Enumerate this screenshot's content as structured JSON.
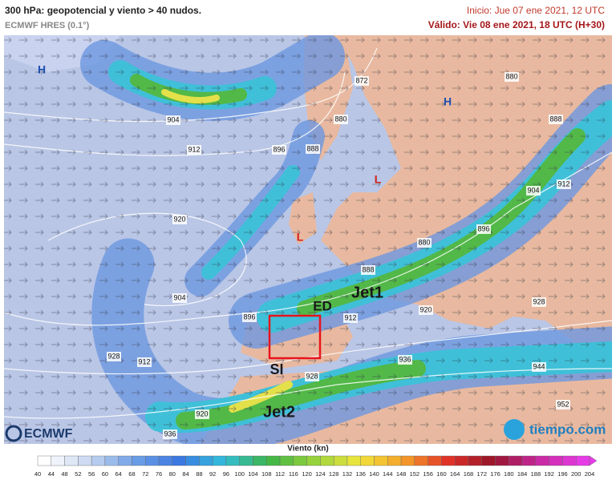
{
  "header": {
    "title": "300 hPa: geopotencial y viento > 40 nudos.",
    "subtitle": "ECMWF HRES (0.1°)",
    "start": "Inicio: Jue 07 ene 2021, 12 UTC",
    "valid": "Válido: Vie 08 ene 2021, 18 UTC (H+30)"
  },
  "map": {
    "contour_labels": [
      904,
      912,
      920,
      904,
      912,
      928,
      920,
      936,
      896,
      888,
      880,
      872,
      880,
      888,
      904,
      912,
      896,
      880,
      888,
      896,
      912,
      920,
      928,
      936,
      944,
      952,
      928
    ],
    "pressure_centers": [
      "H",
      "H",
      "L",
      "L"
    ],
    "annotations": [
      "Jet1",
      "ED",
      "SI",
      "Jet2"
    ]
  },
  "legend": {
    "title": "Viento (kn)",
    "ticks": [
      40,
      44,
      48,
      52,
      56,
      60,
      64,
      68,
      72,
      76,
      80,
      84,
      88,
      92,
      96,
      100,
      104,
      108,
      112,
      116,
      120,
      124,
      128,
      132,
      136,
      140,
      144,
      148,
      152,
      156,
      160,
      164,
      168,
      172,
      176,
      180,
      184,
      188,
      192,
      196,
      200,
      204
    ]
  },
  "logos": {
    "left": "ECMWF",
    "right": "tiempo.com"
  }
}
